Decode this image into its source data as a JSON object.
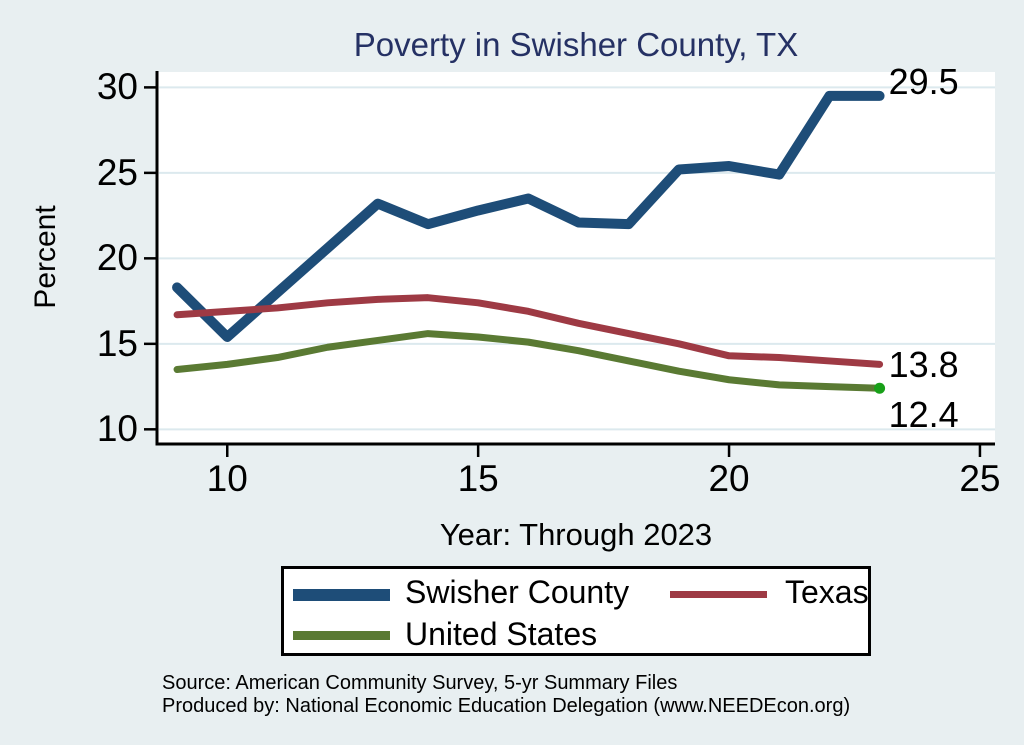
{
  "title": "Poverty in Swisher County, TX",
  "axes": {
    "ylabel": "Percent",
    "xlabel": "Year: Through 2023"
  },
  "legend": {
    "items": [
      {
        "label": "Swisher County",
        "color": "#1e4d78"
      },
      {
        "label": "Texas",
        "color": "#9e3a44"
      },
      {
        "label": "United States",
        "color": "#5a7a33"
      }
    ]
  },
  "footer": {
    "source_line": "Source: American Community Survey, 5-yr Summary Files",
    "produced_line": "Produced by: National Economic Education Delegation (www.NEEDEcon.org)"
  },
  "colors": {
    "background": "#e8eff1",
    "plot_background": "#ffffff",
    "gridline": "#dce9ee",
    "axis": "#000000",
    "title_text": "#253164",
    "end_marker_green": "#18a018"
  },
  "chart_data": {
    "type": "line",
    "title": "Poverty in Swisher County, TX",
    "xlabel": "Year: Through 2023",
    "ylabel": "Percent",
    "x": [
      9,
      10,
      11,
      12,
      13,
      14,
      15,
      16,
      17,
      18,
      19,
      20,
      21,
      22,
      23
    ],
    "series": [
      {
        "name": "Swisher County",
        "color": "#1e4d78",
        "stroke_width": 10,
        "end_label": "29.5",
        "values": [
          18.3,
          15.4,
          18.0,
          20.6,
          23.2,
          22.0,
          22.8,
          23.5,
          22.1,
          22.0,
          25.2,
          25.4,
          24.9,
          29.5,
          29.5
        ]
      },
      {
        "name": "Texas",
        "color": "#9e3a44",
        "stroke_width": 7,
        "end_label": "13.8",
        "values": [
          16.7,
          16.9,
          17.1,
          17.4,
          17.6,
          17.7,
          17.4,
          16.9,
          16.2,
          15.6,
          15.0,
          14.3,
          14.2,
          14.0,
          13.8
        ]
      },
      {
        "name": "United States",
        "color": "#5a7a33",
        "stroke_width": 7,
        "end_label": "12.4",
        "end_marker": true,
        "values": [
          13.5,
          13.8,
          14.2,
          14.8,
          15.2,
          15.6,
          15.4,
          15.1,
          14.6,
          14.0,
          13.4,
          12.9,
          12.6,
          12.5,
          12.4
        ]
      }
    ],
    "xticks": [
      10,
      15,
      20,
      25
    ],
    "yticks": [
      10,
      15,
      20,
      25,
      30
    ],
    "xlim": [
      8.6,
      25.3
    ],
    "ylim": [
      9.2,
      30.9
    ],
    "grid": "horizontal-only",
    "legend_position": "bottom-center"
  }
}
